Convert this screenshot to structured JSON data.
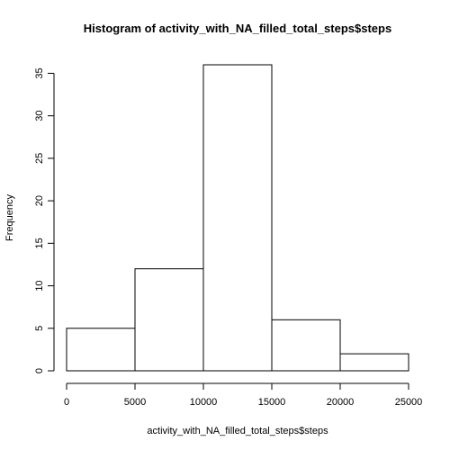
{
  "chart_data": {
    "type": "bar",
    "title": "Histogram of activity_with_NA_filled_total_steps$steps",
    "xlabel": "activity_with_NA_filled_total_steps$steps",
    "ylabel": "Frequency",
    "bins": [
      {
        "from": 0,
        "to": 5000,
        "value": 5
      },
      {
        "from": 5000,
        "to": 10000,
        "value": 12
      },
      {
        "from": 10000,
        "to": 15000,
        "value": 36
      },
      {
        "from": 15000,
        "to": 20000,
        "value": 6
      },
      {
        "from": 20000,
        "to": 25000,
        "value": 2
      }
    ],
    "xlim": [
      0,
      25000
    ],
    "ylim": [
      0,
      36
    ],
    "x_ticks": [
      0,
      5000,
      10000,
      15000,
      20000,
      25000
    ],
    "y_ticks": [
      0,
      5,
      10,
      15,
      20,
      25,
      30,
      35
    ],
    "grid": false,
    "bar_fill": "#ffffff",
    "bar_stroke": "#000000"
  }
}
